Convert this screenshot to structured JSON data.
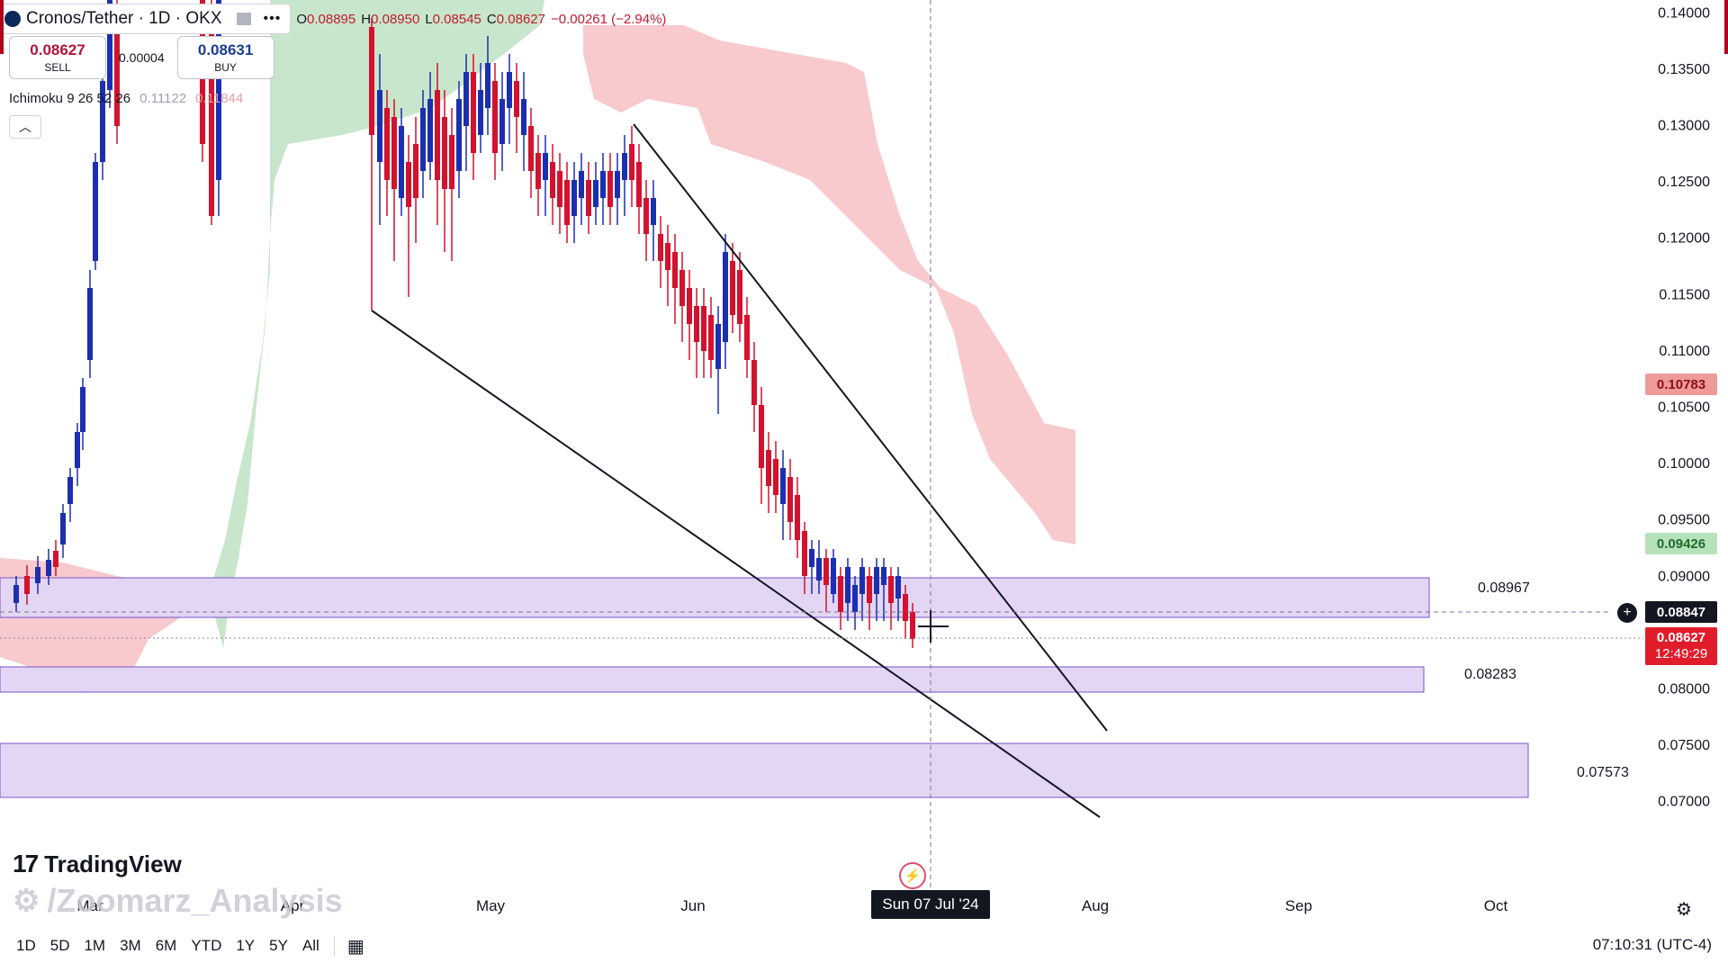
{
  "header": {
    "symbol_title": "Cronos/Tether · 1D · OKX",
    "ohlc": {
      "o_label": "O",
      "o_value": "0.08895",
      "h_label": "H",
      "h_value": "0.08950",
      "l_label": "L",
      "l_value": "0.08545",
      "c_label": "C",
      "c_value": "0.08627",
      "change": "−0.00261 (−2.94%)"
    }
  },
  "trade": {
    "sell_price": "0.08627",
    "sell_label": "SELL",
    "spread": "0.00004",
    "buy_price": "0.08631",
    "buy_label": "BUY"
  },
  "indicator": {
    "name": "Ichimoku 9 26 52 26",
    "value1": "0.11122",
    "value2": "0.11844"
  },
  "price_axis": {
    "ticks": [
      "0.14000",
      "0.13500",
      "0.13000",
      "0.12500",
      "0.12000",
      "0.11500",
      "0.11000",
      "0.10500",
      "0.10000",
      "0.09500",
      "0.09000",
      "0.08500",
      "0.08000",
      "0.07500",
      "0.07000"
    ],
    "tag_cloud_red": "0.10783",
    "tag_cloud_green": "0.09426",
    "tag_crosshair": "0.08847",
    "tag_last_price": "0.08627",
    "tag_countdown": "12:49:29"
  },
  "zones": {
    "zone1_label": "0.08967",
    "zone2_label": "0.08283",
    "zone3_label": "0.07573"
  },
  "time_axis": {
    "labels": [
      "Mar",
      "Apr",
      "May",
      "Jun",
      "Aug",
      "Sep",
      "Oct"
    ],
    "crosshair_date": "Sun 07 Jul '24"
  },
  "branding": {
    "logo": "17",
    "name": "TradingView",
    "watermark": "/Zoomarz_Analysis"
  },
  "bottom_bar": {
    "ranges": [
      "1D",
      "5D",
      "1M",
      "3M",
      "6M",
      "YTD",
      "1Y",
      "5Y",
      "All"
    ],
    "clock": "07:10:31 (UTC-4)"
  },
  "colors": {
    "up": "#1c2fb0",
    "down": "#d2122e",
    "cloud_red": "#f8c9cd",
    "cloud_green": "#c8e6cb",
    "zone": "#e3d6f5"
  },
  "chart_data": {
    "type": "candlestick",
    "ylim": [
      0.0675,
      0.1405
    ],
    "ohlc_recent": [
      {
        "label": "May",
        "o": 0.128,
        "h": 0.135,
        "l": 0.122,
        "c": 0.125
      },
      {
        "label": "Jun",
        "o": 0.119,
        "h": 0.121,
        "l": 0.109,
        "c": 0.111
      },
      {
        "label": "Jul",
        "o": 0.08895,
        "h": 0.0895,
        "l": 0.08545,
        "c": 0.08627
      }
    ]
  }
}
